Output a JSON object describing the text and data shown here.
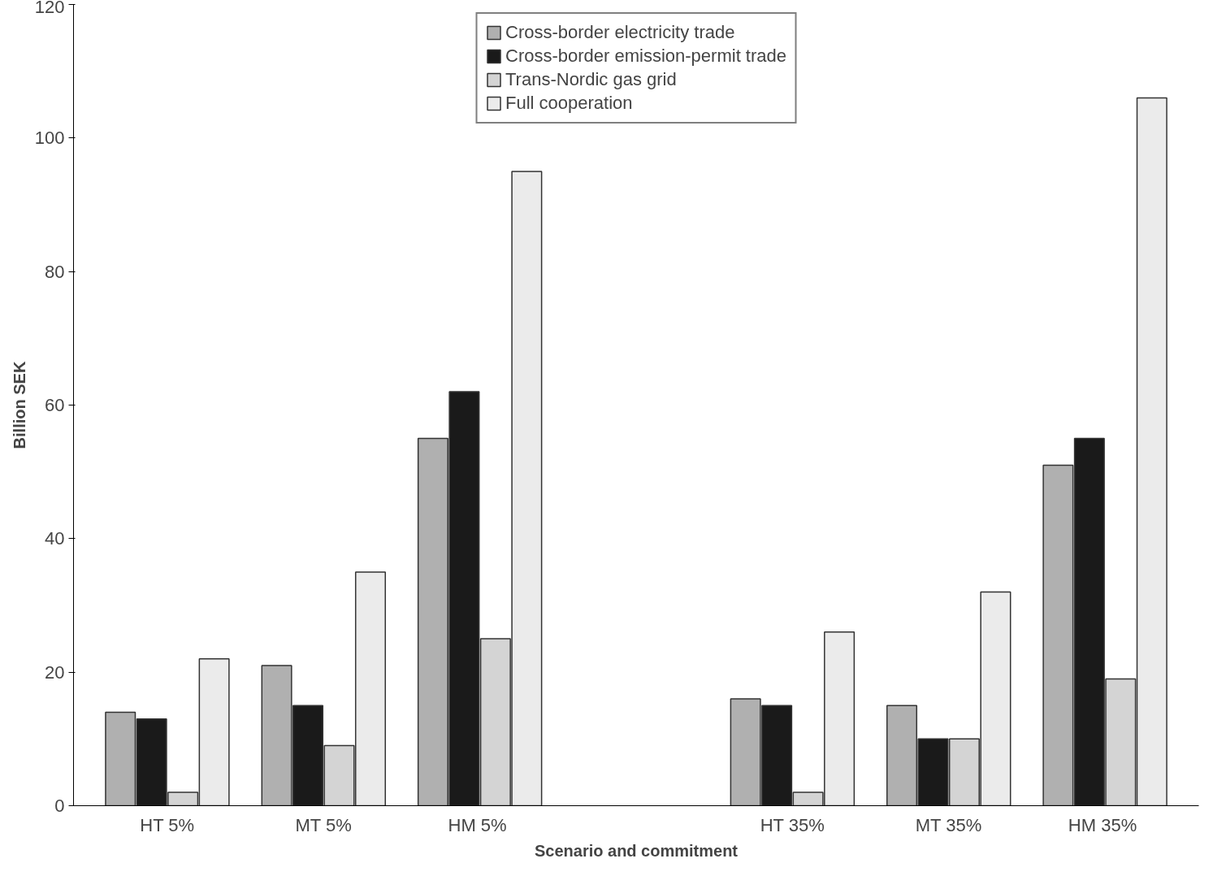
{
  "chart_data": {
    "type": "bar",
    "xlabel": "Scenario and commitment",
    "ylabel": "Billion SEK",
    "categories": [
      "HT 5%",
      "MT 5%",
      "HM  5%",
      null,
      "HT 35%",
      "MT 35%",
      "HM  35%"
    ],
    "series": [
      {
        "name": "Cross-border electricity trade",
        "color": "#b0b0b0",
        "values": [
          14,
          21,
          55,
          null,
          16,
          15,
          51
        ]
      },
      {
        "name": "Cross-border emission-permit trade",
        "color": "#1a1a1a",
        "values": [
          13,
          15,
          62,
          null,
          15,
          10,
          55
        ]
      },
      {
        "name": "Trans-Nordic gas grid",
        "color": "#d4d4d4",
        "values": [
          2,
          9,
          25,
          null,
          2,
          10,
          19
        ]
      },
      {
        "name": "Full cooperation",
        "color": "#ebebeb",
        "values": [
          22,
          35,
          95,
          null,
          26,
          32,
          106
        ]
      }
    ],
    "ylim": [
      0,
      120
    ],
    "yticks": [
      0,
      20,
      40,
      60,
      80,
      100,
      120
    ],
    "grid": false,
    "legend": "top"
  }
}
